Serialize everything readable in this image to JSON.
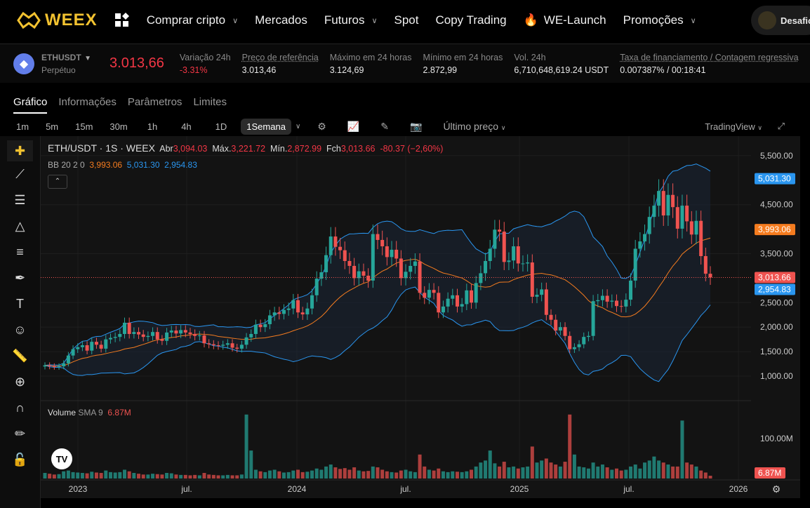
{
  "nav": {
    "brand": "WEEX",
    "items": [
      {
        "label": "Comprar cripto",
        "dropdown": true
      },
      {
        "label": "Mercados"
      },
      {
        "label": "Futuros",
        "dropdown": true
      },
      {
        "label": "Spot"
      },
      {
        "label": "Copy Trading"
      },
      {
        "label": "WE-Launch"
      },
      {
        "label": "Promoções",
        "dropdown": true
      }
    ],
    "user_button": "Desafio"
  },
  "ticker": {
    "symbol": "ETHUSDT",
    "type": "Perpétuo",
    "last_price": "3.013,66",
    "stats": [
      {
        "label": "Variação 24h",
        "value": "-3.31%"
      },
      {
        "label": "Preço de referência",
        "value": "3.013,46"
      },
      {
        "label": "Máximo em 24 horas",
        "value": "3.124,69"
      },
      {
        "label": "Mínimo em 24 horas",
        "value": "2.872,99"
      },
      {
        "label": "Vol. 24h",
        "value": "6,710,648,619.24 USDT"
      },
      {
        "label": "Taxa de financiamento / Contagem regressiva",
        "value": "0.007387% / 00:18:41"
      }
    ]
  },
  "tabs": [
    "Gráfico",
    "Informações",
    "Parâmetros",
    "Limites"
  ],
  "intervals": [
    "1m",
    "5m",
    "15m",
    "30m",
    "1h",
    "4h",
    "1D",
    "1Semana"
  ],
  "price_source": "Último preço",
  "provider": "TradingView",
  "legend": {
    "title": "ETH/USDT · 1S · WEEX",
    "open_label": "Abr",
    "open": "3,094.03",
    "high_label": "Máx.",
    "high": "3,221.72",
    "low_label": "Mín.",
    "low": "2,872.99",
    "close_label": "Fch",
    "close": "3,013.66",
    "change": "-80.37 (−2,60%)",
    "bb_label": "BB 20 2 0",
    "bb_mid": "3,993.06",
    "bb_up": "5,031.30",
    "bb_low": "2,954.83"
  },
  "volume_legend": {
    "label": "Volume",
    "sma": "SMA 9",
    "value": "6.87M"
  },
  "colors": {
    "up": "#26a69a",
    "down": "#ef5350",
    "bb_mid": "#f57c1f",
    "bb_band": "#2a96f0",
    "accent": "#f2c230"
  },
  "chart_data": {
    "type": "candlestick",
    "interval": "1W",
    "ylim": [
      800,
      5700
    ],
    "y_ticks": [
      "5,500.00",
      "4,500.00",
      "3,500.00",
      "2,500.00",
      "2,000.00",
      "1,500.00",
      "1,000.00"
    ],
    "y_tick_values": [
      5500,
      4500,
      3500,
      2500,
      2000,
      1500,
      1000
    ],
    "x_ticks": [
      "2023",
      "jul.",
      "2024",
      "jul.",
      "2025",
      "jul.",
      "2026"
    ],
    "price_labels": [
      {
        "text": "5,031.30",
        "value": 5031.3,
        "color": "#2a96f0"
      },
      {
        "text": "3,993.06",
        "value": 3993.06,
        "color": "#f57c1f"
      },
      {
        "text": "3,013.66",
        "value": 3013.66,
        "color": "#ef5350"
      },
      {
        "text": "2,954.83",
        "value": 2954.83,
        "color": "#2a96f0"
      }
    ],
    "volume_ticks": [
      "100.00M"
    ],
    "volume_last": "6.87M",
    "closes": [
      1220,
      1200,
      1190,
      1200,
      1260,
      1420,
      1550,
      1590,
      1630,
      1520,
      1700,
      1640,
      1560,
      1750,
      1780,
      1800,
      1860,
      2090,
      1860,
      1900,
      1850,
      1800,
      1820,
      1900,
      1750,
      1720,
      1890,
      1930,
      1870,
      1940,
      1890,
      1860,
      1820,
      1830,
      1670,
      1650,
      1630,
      1620,
      1640,
      1670,
      1580,
      1560,
      1640,
      1790,
      1860,
      2050,
      2000,
      2060,
      2240,
      2300,
      2270,
      2350,
      2380,
      2550,
      2300,
      2260,
      2380,
      2650,
      2990,
      3120,
      3470,
      3850,
      3640,
      3570,
      3350,
      3250,
      3000,
      3140,
      3050,
      2950,
      3900,
      3780,
      3650,
      3430,
      3580,
      3400,
      3000,
      3130,
      3250,
      3340,
      2700,
      2600,
      2760,
      2700,
      2300,
      2420,
      2580,
      2650,
      2420,
      2470,
      2750,
      2500,
      2900,
      3100,
      3350,
      3600,
      3990,
      3950,
      3330,
      3360,
      3650,
      3300,
      3300,
      3320,
      2620,
      2660,
      2770,
      2250,
      2150,
      1930,
      2000,
      1820,
      1550,
      1590,
      1650,
      1800,
      1820,
      2530,
      2550,
      2640,
      2520,
      2540,
      2430,
      2420,
      2560,
      2950,
      3600,
      3750,
      3900,
      4250,
      4480,
      4780,
      4280,
      4700,
      4450,
      4010,
      4480,
      4160,
      3890,
      4170,
      3450,
      3090,
      3014
    ],
    "volume_m": [
      14,
      12,
      10,
      11,
      18,
      20,
      16,
      15,
      14,
      13,
      17,
      15,
      14,
      20,
      16,
      15,
      16,
      22,
      18,
      14,
      12,
      10,
      10,
      12,
      11,
      10,
      14,
      13,
      10,
      9,
      9,
      8,
      9,
      8,
      14,
      10,
      9,
      8,
      8,
      9,
      8,
      8,
      10,
      160,
      70,
      22,
      18,
      16,
      20,
      22,
      18,
      15,
      16,
      20,
      22,
      16,
      17,
      20,
      25,
      22,
      30,
      35,
      28,
      24,
      26,
      22,
      28,
      20,
      18,
      19,
      30,
      28,
      22,
      18,
      16,
      15,
      20,
      22,
      18,
      16,
      60,
      30,
      22,
      20,
      25,
      18,
      16,
      18,
      17,
      16,
      18,
      22,
      30,
      40,
      45,
      70,
      38,
      30,
      42,
      28,
      30,
      25,
      28,
      30,
      80,
      40,
      45,
      50,
      40,
      35,
      30,
      42,
      160,
      60,
      30,
      28,
      25,
      40,
      30,
      35,
      28,
      22,
      25,
      20,
      22,
      30,
      35,
      25,
      40,
      45,
      55,
      45,
      40,
      35,
      30,
      30,
      145,
      40,
      35,
      30,
      20,
      15,
      7
    ]
  }
}
